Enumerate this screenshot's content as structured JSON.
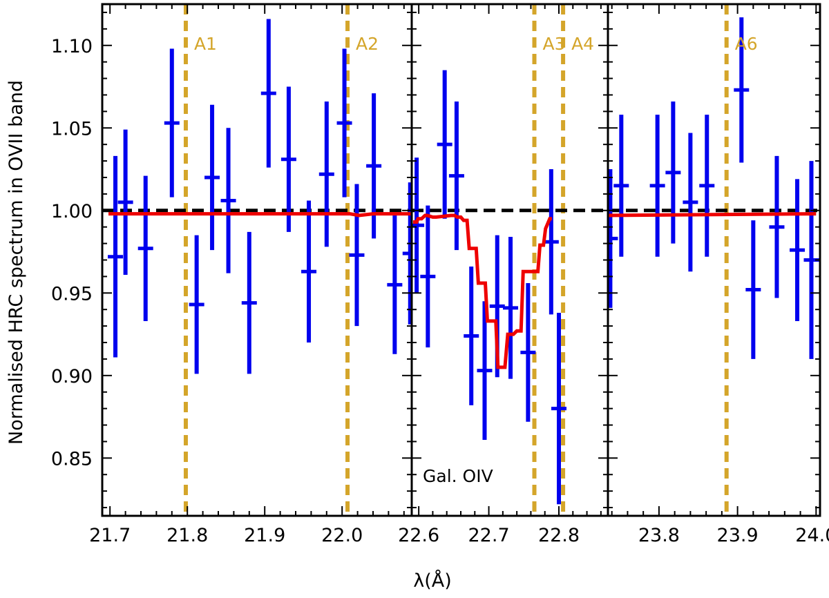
{
  "chart_data": {
    "type": "scatter",
    "ylabel": "Normalised HRC spectrum in OVII band",
    "xlabel": "λ(Å)",
    "ylim": [
      0.815,
      1.125
    ],
    "y_ticks": [
      0.85,
      0.9,
      0.95,
      1.0,
      1.05,
      1.1
    ],
    "y_tick_labels": [
      "0.85",
      "0.90",
      "0.95",
      "1.00",
      "1.05",
      "1.10"
    ],
    "colors": {
      "data": "#0000ee",
      "model": "#ee0000",
      "reference": "#000000",
      "markers": "#d4a52a"
    },
    "reference_line": 1.0,
    "panels": [
      {
        "xlim": [
          21.69,
          22.09
        ],
        "x_ticks": [
          21.7,
          21.8,
          21.9,
          22.0
        ],
        "x_tick_labels": [
          "21.7",
          "21.8",
          "21.9",
          "22.0"
        ],
        "series": [
          {
            "name": "data",
            "points": [
              {
                "x": 21.707,
                "y": 0.972,
                "err": 0.061
              },
              {
                "x": 21.72,
                "y": 1.005,
                "err": 0.044
              },
              {
                "x": 21.746,
                "y": 0.977,
                "err": 0.044
              },
              {
                "x": 21.78,
                "y": 1.053,
                "err": 0.045
              },
              {
                "x": 21.812,
                "y": 0.943,
                "err": 0.042
              },
              {
                "x": 21.832,
                "y": 1.02,
                "err": 0.044
              },
              {
                "x": 21.853,
                "y": 1.006,
                "err": 0.044
              },
              {
                "x": 21.88,
                "y": 0.944,
                "err": 0.043
              },
              {
                "x": 21.905,
                "y": 1.071,
                "err": 0.045
              },
              {
                "x": 21.931,
                "y": 1.031,
                "err": 0.044
              },
              {
                "x": 21.957,
                "y": 0.963,
                "err": 0.043
              },
              {
                "x": 21.98,
                "y": 1.022,
                "err": 0.044
              },
              {
                "x": 22.003,
                "y": 1.053,
                "err": 0.045
              },
              {
                "x": 22.019,
                "y": 0.973,
                "err": 0.043
              },
              {
                "x": 22.041,
                "y": 1.027,
                "err": 0.044
              },
              {
                "x": 22.068,
                "y": 0.955,
                "err": 0.042
              },
              {
                "x": 22.088,
                "y": 0.974,
                "err": 0.043
              }
            ]
          },
          {
            "name": "model",
            "x": [
              21.698,
              22.01,
              22.022,
              22.04,
              22.089
            ],
            "y": [
              0.998,
              0.998,
              0.997,
              0.998,
              0.998
            ]
          }
        ],
        "markers": [
          {
            "x": 21.798,
            "label": "A1"
          },
          {
            "x": 22.007,
            "label": "A2"
          }
        ]
      },
      {
        "xlim": [
          22.59,
          22.87
        ],
        "x_ticks": [
          22.6,
          22.7,
          22.8
        ],
        "x_tick_labels": [
          "22.6",
          "22.7",
          "22.8"
        ],
        "series": [
          {
            "name": "data",
            "points": [
              {
                "x": 22.597,
                "y": 0.991,
                "err": 0.041
              },
              {
                "x": 22.613,
                "y": 0.96,
                "err": 0.043
              },
              {
                "x": 22.637,
                "y": 1.04,
                "err": 0.045
              },
              {
                "x": 22.654,
                "y": 1.021,
                "err": 0.045
              },
              {
                "x": 22.675,
                "y": 0.924,
                "err": 0.042
              },
              {
                "x": 22.694,
                "y": 0.903,
                "err": 0.042
              },
              {
                "x": 22.712,
                "y": 0.942,
                "err": 0.043
              },
              {
                "x": 22.731,
                "y": 0.941,
                "err": 0.043
              },
              {
                "x": 22.756,
                "y": 0.914,
                "err": 0.042
              },
              {
                "x": 22.789,
                "y": 0.981,
                "err": 0.044
              },
              {
                "x": 22.8,
                "y": 0.88,
                "err": 0.058
              }
            ]
          },
          {
            "name": "model",
            "x": [
              22.592,
              22.597,
              22.599,
              22.604,
              22.609,
              22.612,
              22.62,
              22.625,
              22.646,
              22.651,
              22.655,
              22.66,
              22.664,
              22.669,
              22.672,
              22.682,
              22.685,
              22.695,
              22.698,
              22.71,
              22.713,
              22.72,
              22.723,
              22.727,
              22.73,
              22.735,
              22.74,
              22.746,
              22.749,
              22.753,
              22.756,
              22.77,
              22.773,
              22.778,
              22.781,
              22.787,
              22.79
            ],
            "y": [
              0.993,
              0.993,
              0.995,
              0.995,
              0.997,
              0.997,
              0.996,
              0.996,
              0.997,
              0.997,
              0.996,
              0.996,
              0.994,
              0.994,
              0.977,
              0.977,
              0.956,
              0.956,
              0.933,
              0.933,
              0.905,
              0.905,
              0.905,
              0.925,
              0.925,
              0.925,
              0.927,
              0.927,
              0.963,
              0.963,
              0.963,
              0.963,
              0.979,
              0.979,
              0.989,
              0.995,
              0.995
            ]
          }
        ],
        "markers": [
          {
            "x": 22.765,
            "label": "A3"
          },
          {
            "x": 22.806,
            "label": "A4"
          }
        ],
        "annotation": "Gal. OIV"
      },
      {
        "xlim": [
          23.735,
          24.005
        ],
        "x_ticks": [
          23.8,
          23.9,
          24.0
        ],
        "x_tick_labels": [
          "23.8",
          "23.9",
          "24.0"
        ],
        "series": [
          {
            "name": "data",
            "points": [
              {
                "x": 23.738,
                "y": 0.983,
                "err": 0.042
              },
              {
                "x": 23.752,
                "y": 1.015,
                "err": 0.043
              },
              {
                "x": 23.798,
                "y": 1.015,
                "err": 0.043
              },
              {
                "x": 23.818,
                "y": 1.023,
                "err": 0.043
              },
              {
                "x": 23.84,
                "y": 1.005,
                "err": 0.042
              },
              {
                "x": 23.861,
                "y": 1.015,
                "err": 0.043
              },
              {
                "x": 23.905,
                "y": 1.073,
                "err": 0.044
              },
              {
                "x": 23.92,
                "y": 0.952,
                "err": 0.042
              },
              {
                "x": 23.95,
                "y": 0.99,
                "err": 0.043
              },
              {
                "x": 23.976,
                "y": 0.976,
                "err": 0.043
              },
              {
                "x": 23.994,
                "y": 0.97,
                "err": 0.06
              }
            ]
          },
          {
            "name": "model",
            "x": [
              23.736,
              24.0
            ],
            "y": [
              0.997,
              0.998
            ]
          }
        ],
        "markers": [
          {
            "x": 23.886,
            "label": "A6"
          }
        ]
      }
    ]
  }
}
